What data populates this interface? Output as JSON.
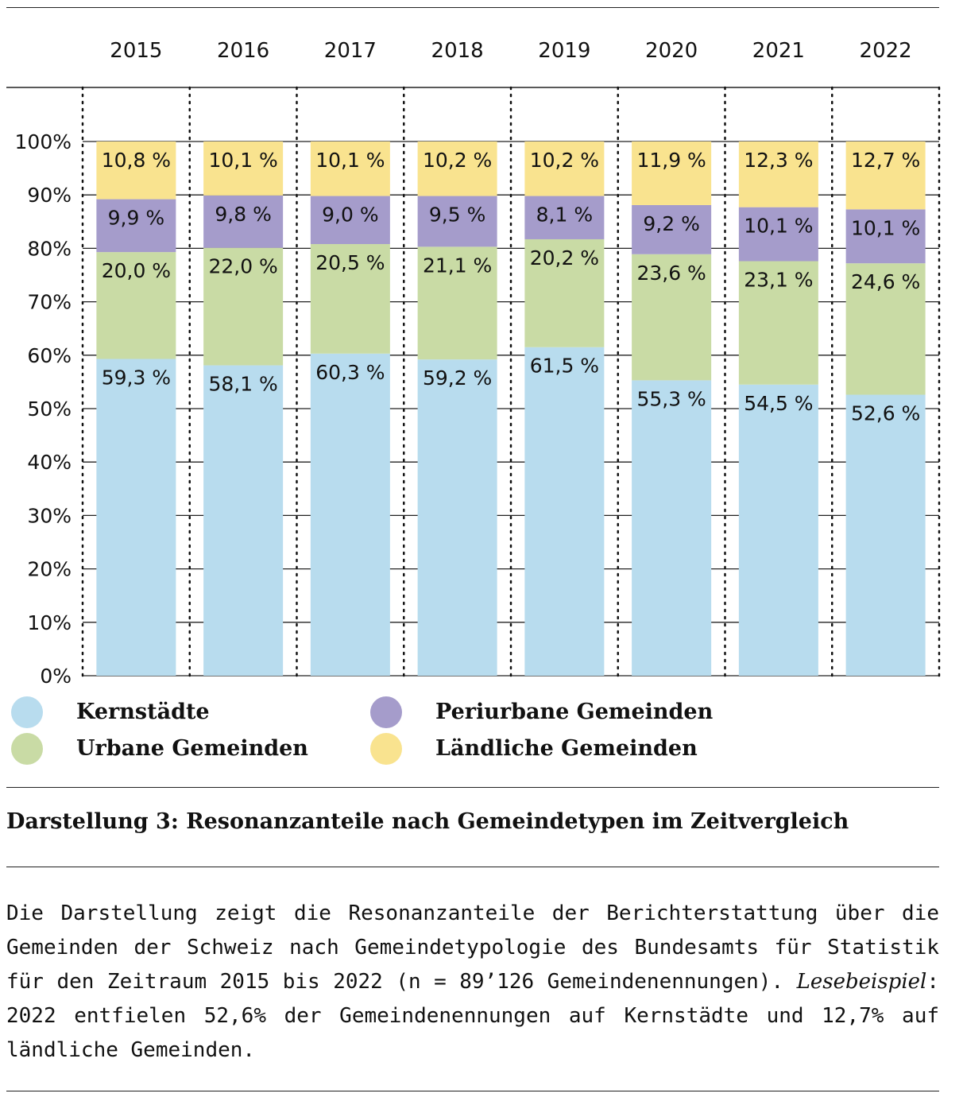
{
  "chart_data": {
    "type": "bar",
    "stacked": true,
    "categories": [
      "2015",
      "2016",
      "2017",
      "2018",
      "2019",
      "2020",
      "2021",
      "2022"
    ],
    "ylim": [
      0,
      100
    ],
    "y_ticks": [
      "0%",
      "10%",
      "20%",
      "30%",
      "40%",
      "50%",
      "60%",
      "70%",
      "80%",
      "90%",
      "100%"
    ],
    "series": [
      {
        "name": "Kernstädte",
        "color": "#b8dcee",
        "values": [
          59.3,
          58.1,
          60.3,
          59.2,
          61.5,
          55.3,
          54.5,
          52.6
        ],
        "labels": [
          "59,3 %",
          "58,1 %",
          "60,3 %",
          "59,2 %",
          "61,5 %",
          "55,3 %",
          "54,5 %",
          "52,6 %"
        ]
      },
      {
        "name": "Urbane Gemeinden",
        "color": "#c9dba5",
        "values": [
          20.0,
          22.0,
          20.5,
          21.1,
          20.2,
          23.6,
          23.1,
          24.6
        ],
        "labels": [
          "20,0 %",
          "22,0 %",
          "20,5 %",
          "21,1 %",
          "20,2 %",
          "23,6 %",
          "23,1 %",
          "24,6 %"
        ]
      },
      {
        "name": "Periurbane Gemeinden",
        "color": "#a59ccb",
        "values": [
          9.9,
          9.8,
          9.0,
          9.5,
          8.1,
          9.2,
          10.1,
          10.1
        ],
        "labels": [
          "9,9 %",
          "9,8 %",
          "9,0 %",
          "9,5 %",
          "8,1 %",
          "9,2 %",
          "10,1 %",
          "10,1 %"
        ]
      },
      {
        "name": "Ländliche Gemeinden",
        "color": "#f9e38f",
        "values": [
          10.8,
          10.1,
          10.1,
          10.2,
          10.2,
          11.9,
          12.3,
          12.7
        ],
        "labels": [
          "10,8 %",
          "10,1 %",
          "10,1 %",
          "10,2 %",
          "10,2 %",
          "11,9 %",
          "12,3 %",
          "12,7 %"
        ]
      }
    ],
    "grid": true
  },
  "legend": {
    "items": [
      {
        "label": "Kernstädte",
        "color": "#b8dcee"
      },
      {
        "label": "Urbane Gemeinden",
        "color": "#c9dba5"
      },
      {
        "label": "Periurbane Gemeinden",
        "color": "#a59ccb"
      },
      {
        "label": "Ländliche Gemeinden",
        "color": "#f9e38f"
      }
    ]
  },
  "caption": {
    "title": "Darstellung 3: Resonanzanteile nach Gemeindetypen im Zeitvergleich",
    "body": "Die Darstellung zeigt die Resonanzanteile der Berichterstattung über die Gemeinden der Schweiz nach Gemeindetypologie des Bundesamts für Statistik für den Zeitraum 2015 bis 2022 (n = 89’126 Gemeindenennungen).",
    "example_label": "Lesebeispiel",
    "example_text": ": 2022 entfielen 52,6% der Gemeindenennungen auf Kernstädte und 12,7% auf ländliche Gemeinden."
  }
}
